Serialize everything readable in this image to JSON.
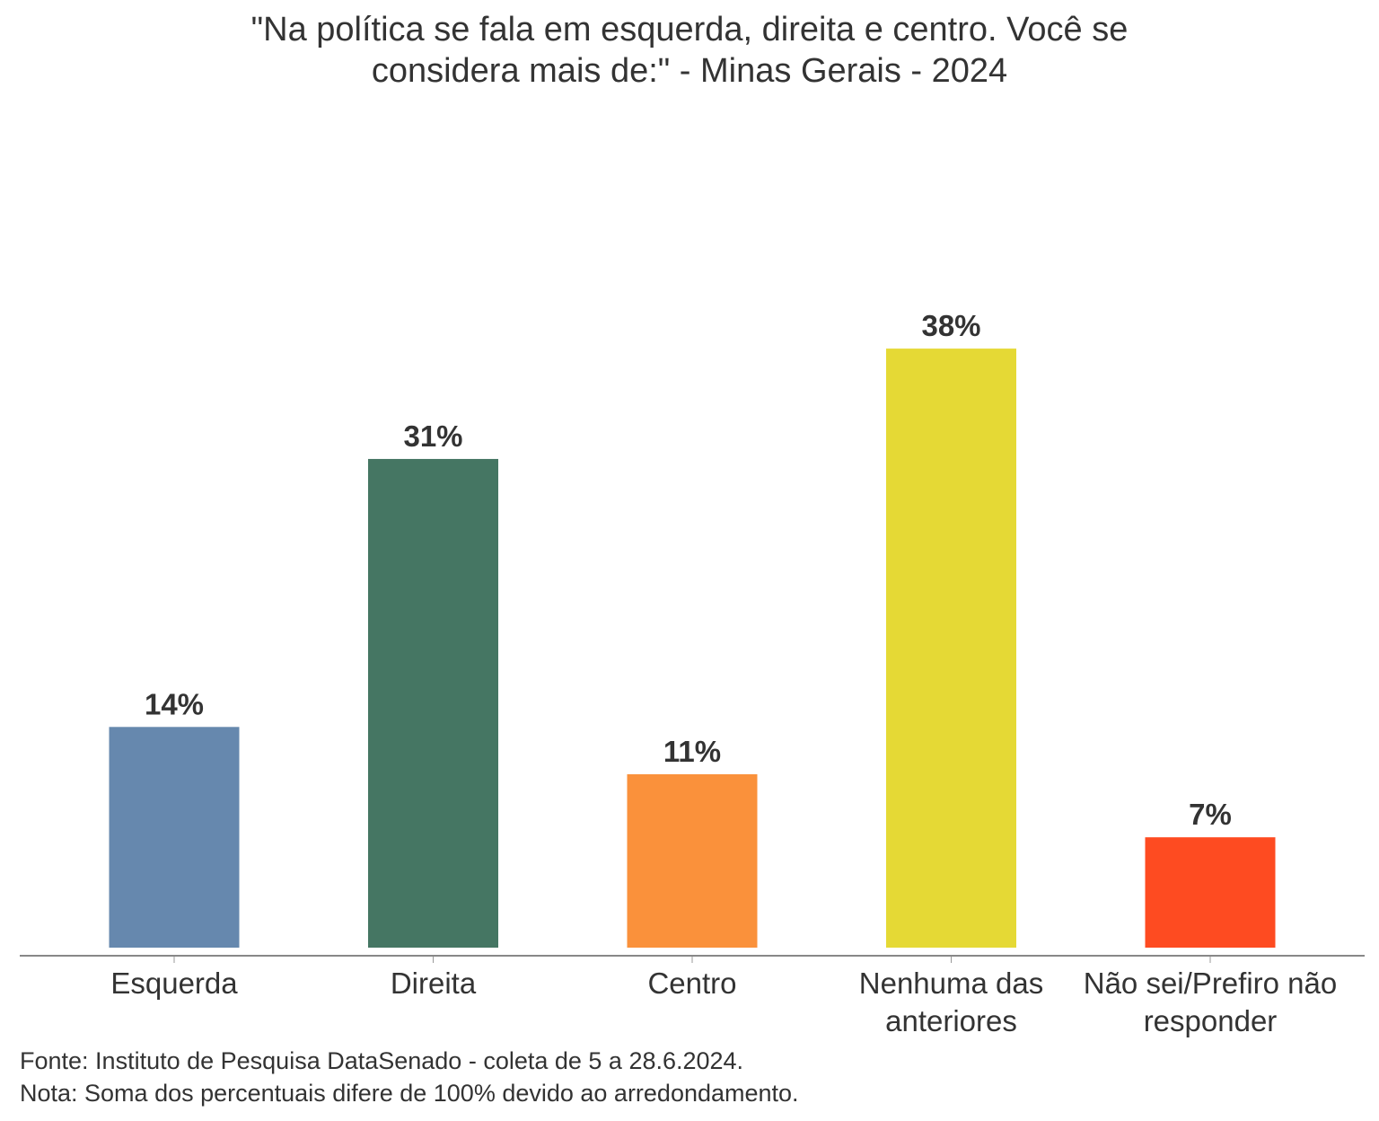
{
  "chart_data": {
    "type": "bar",
    "title_lines": [
      "\"Na política se fala em esquerda, direita e centro. Você se",
      "considera mais de:\" - Minas Gerais - 2024"
    ],
    "categories": [
      [
        "Esquerda"
      ],
      [
        "Direita"
      ],
      [
        "Centro"
      ],
      [
        "Nenhuma das",
        "anteriores"
      ],
      [
        "Não sei/Prefiro não",
        "responder"
      ]
    ],
    "values": [
      14,
      31,
      11,
      38,
      7
    ],
    "data_labels": [
      "14%",
      "31%",
      "11%",
      "38%",
      "7%"
    ],
    "colors": [
      "#6688ae",
      "#457663",
      "#fa913b",
      "#e5d935",
      "#fe4b21"
    ],
    "xlabel": "",
    "ylabel": "",
    "ylim": [
      0,
      40
    ],
    "grid": false,
    "legend": "none",
    "unit": "%"
  },
  "footer": {
    "source": "Fonte: Instituto de Pesquisa DataSenado - coleta de 5 a 28.6.2024.",
    "note": "Nota: Soma dos percentuais difere de 100% devido ao arredondamento."
  }
}
